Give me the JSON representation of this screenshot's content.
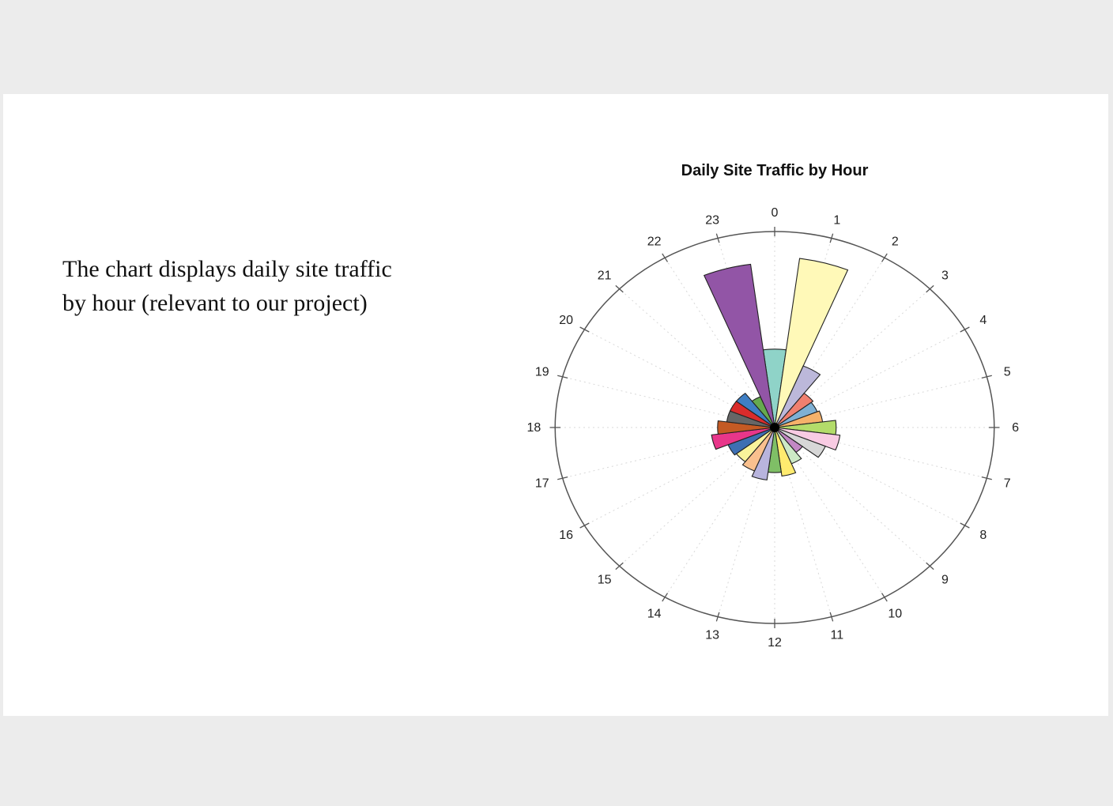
{
  "slide": {
    "caption": "The chart displays daily site traffic by hour (relevant to our project)"
  },
  "chart_data": {
    "type": "bar",
    "subtype": "polar",
    "title": "Daily Site Traffic by Hour",
    "categories": [
      "0",
      "1",
      "2",
      "3",
      "4",
      "5",
      "6",
      "7",
      "8",
      "9",
      "10",
      "11",
      "12",
      "13",
      "14",
      "15",
      "16",
      "17",
      "18",
      "19",
      "20",
      "21",
      "22",
      "23"
    ],
    "values": [
      40,
      87,
      34,
      22,
      21,
      22,
      28,
      30,
      25,
      16,
      20,
      25,
      23,
      27,
      24,
      22,
      23,
      29,
      26,
      22,
      22,
      22,
      17,
      84
    ],
    "rmax": 100,
    "grid": true,
    "legend": "none",
    "colors": [
      "#8fd3c8",
      "#fff9b8",
      "#bcb8da",
      "#f0806f",
      "#7eb0d4",
      "#f5b16a",
      "#b3dc6a",
      "#f8cbe3",
      "#d7d7d7",
      "#c288c4",
      "#cde9c6",
      "#ffeb6f",
      "#7fbf66",
      "#b8b4dd",
      "#f9c08e",
      "#f9f39b",
      "#3e6fb3",
      "#e8368a",
      "#c45a24",
      "#666666",
      "#d92c2c",
      "#3f7fc4",
      "#66aa4f",
      "#9255a6"
    ]
  }
}
